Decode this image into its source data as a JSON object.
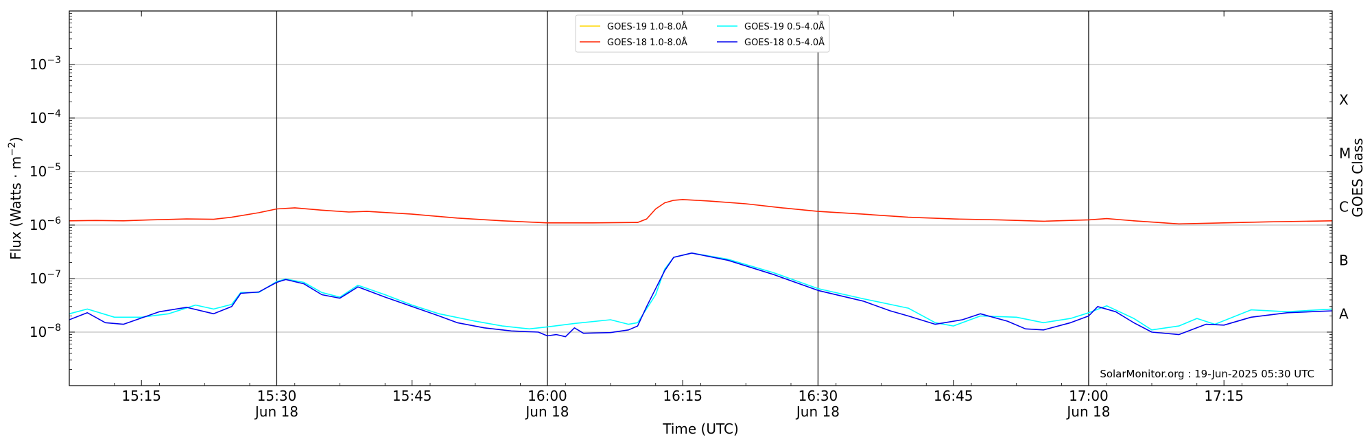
{
  "chart_data": {
    "type": "line",
    "ylabel": "Flux (Watts · m",
    "ylabel_exponent": "−2",
    "ylabel_close": ")",
    "y_right_label": "GOES Class",
    "xlabel": "Time (UTC)",
    "y_scale": "log",
    "ylim": [
      1e-09,
      0.01
    ],
    "xlim": [
      "2025-06-18T15:07:00Z",
      "2025-06-18T17:27:00Z"
    ],
    "grid": "horizontal",
    "legend_position": "top-center",
    "watermark": "SolarMonitor.org : 19-Jun-2025 05:30 UTC",
    "y_ticks": [
      {
        "value": 1e-08,
        "base": "10",
        "exp": "−8"
      },
      {
        "value": 1e-07,
        "base": "10",
        "exp": "−7"
      },
      {
        "value": 1e-06,
        "base": "10",
        "exp": "−6"
      },
      {
        "value": 1e-05,
        "base": "10",
        "exp": "−5"
      },
      {
        "value": 0.0001,
        "base": "10",
        "exp": "−4"
      },
      {
        "value": 0.001,
        "base": "10",
        "exp": "−3"
      }
    ],
    "x_ticks": [
      {
        "time": "2025-06-18T15:15:00Z",
        "label": "15:15",
        "sublabel": ""
      },
      {
        "time": "2025-06-18T15:30:00Z",
        "label": "15:30",
        "sublabel": "Jun 18"
      },
      {
        "time": "2025-06-18T15:45:00Z",
        "label": "15:45",
        "sublabel": ""
      },
      {
        "time": "2025-06-18T16:00:00Z",
        "label": "16:00",
        "sublabel": "Jun 18"
      },
      {
        "time": "2025-06-18T16:15:00Z",
        "label": "16:15",
        "sublabel": ""
      },
      {
        "time": "2025-06-18T16:30:00Z",
        "label": "16:30",
        "sublabel": "Jun 18"
      },
      {
        "time": "2025-06-18T16:45:00Z",
        "label": "16:45",
        "sublabel": ""
      },
      {
        "time": "2025-06-18T17:00:00Z",
        "label": "17:00",
        "sublabel": "Jun 18"
      },
      {
        "time": "2025-06-18T17:15:00Z",
        "label": "17:15",
        "sublabel": ""
      }
    ],
    "vlines": [
      "2025-06-18T15:30:00Z",
      "2025-06-18T16:00:00Z",
      "2025-06-18T16:30:00Z",
      "2025-06-18T17:00:00Z"
    ],
    "goes_classes": [
      {
        "label": "A",
        "value": 2.2e-08
      },
      {
        "label": "B",
        "value": 2.2e-07
      },
      {
        "label": "C",
        "value": 2.2e-06
      },
      {
        "label": "M",
        "value": 2.2e-05
      },
      {
        "label": "X",
        "value": 0.00022
      }
    ],
    "legend": [
      {
        "label": "GOES-19 1.0-8.0Å",
        "color": "#ffd700"
      },
      {
        "label": "GOES-19 0.5-4.0Å",
        "color": "#00ffff"
      },
      {
        "label": "GOES-18 1.0-8.0Å",
        "color": "#ff2200"
      },
      {
        "label": "GOES-18 0.5-4.0Å",
        "color": "#0000ee"
      }
    ],
    "series": [
      {
        "name": "GOES-18 1.0-8.0Å",
        "color": "#ff2200",
        "points": [
          [
            "2025-06-18T15:07:00Z",
            1.2e-06
          ],
          [
            "2025-06-18T15:10:00Z",
            1.22e-06
          ],
          [
            "2025-06-18T15:13:00Z",
            1.2e-06
          ],
          [
            "2025-06-18T15:16:00Z",
            1.25e-06
          ],
          [
            "2025-06-18T15:20:00Z",
            1.3e-06
          ],
          [
            "2025-06-18T15:23:00Z",
            1.28e-06
          ],
          [
            "2025-06-18T15:25:00Z",
            1.4e-06
          ],
          [
            "2025-06-18T15:28:00Z",
            1.7e-06
          ],
          [
            "2025-06-18T15:30:00Z",
            2e-06
          ],
          [
            "2025-06-18T15:32:00Z",
            2.1e-06
          ],
          [
            "2025-06-18T15:35:00Z",
            1.9e-06
          ],
          [
            "2025-06-18T15:38:00Z",
            1.75e-06
          ],
          [
            "2025-06-18T15:40:00Z",
            1.8e-06
          ],
          [
            "2025-06-18T15:45:00Z",
            1.6e-06
          ],
          [
            "2025-06-18T15:50:00Z",
            1.35e-06
          ],
          [
            "2025-06-18T15:55:00Z",
            1.2e-06
          ],
          [
            "2025-06-18T16:00:00Z",
            1.1e-06
          ],
          [
            "2025-06-18T16:05:00Z",
            1.1e-06
          ],
          [
            "2025-06-18T16:10:00Z",
            1.12e-06
          ],
          [
            "2025-06-18T16:11:00Z",
            1.3e-06
          ],
          [
            "2025-06-18T16:12:00Z",
            2e-06
          ],
          [
            "2025-06-18T16:13:00Z",
            2.6e-06
          ],
          [
            "2025-06-18T16:14:00Z",
            2.9e-06
          ],
          [
            "2025-06-18T16:15:00Z",
            3e-06
          ],
          [
            "2025-06-18T16:18:00Z",
            2.8e-06
          ],
          [
            "2025-06-18T16:22:00Z",
            2.5e-06
          ],
          [
            "2025-06-18T16:26:00Z",
            2.1e-06
          ],
          [
            "2025-06-18T16:30:00Z",
            1.8e-06
          ],
          [
            "2025-06-18T16:35:00Z",
            1.6e-06
          ],
          [
            "2025-06-18T16:40:00Z",
            1.4e-06
          ],
          [
            "2025-06-18T16:45:00Z",
            1.3e-06
          ],
          [
            "2025-06-18T16:50:00Z",
            1.25e-06
          ],
          [
            "2025-06-18T16:55:00Z",
            1.18e-06
          ],
          [
            "2025-06-18T17:00:00Z",
            1.25e-06
          ],
          [
            "2025-06-18T17:02:00Z",
            1.32e-06
          ],
          [
            "2025-06-18T17:05:00Z",
            1.2e-06
          ],
          [
            "2025-06-18T17:10:00Z",
            1.05e-06
          ],
          [
            "2025-06-18T17:15:00Z",
            1.1e-06
          ],
          [
            "2025-06-18T17:20:00Z",
            1.15e-06
          ],
          [
            "2025-06-18T17:27:00Z",
            1.2e-06
          ]
        ]
      },
      {
        "name": "GOES-19 0.5-4.0Å",
        "color": "#00ffff",
        "points": [
          [
            "2025-06-18T15:07:00Z",
            2.2e-08
          ],
          [
            "2025-06-18T15:09:00Z",
            2.7e-08
          ],
          [
            "2025-06-18T15:12:00Z",
            1.9e-08
          ],
          [
            "2025-06-18T15:15:00Z",
            1.9e-08
          ],
          [
            "2025-06-18T15:18:00Z",
            2.2e-08
          ],
          [
            "2025-06-18T15:21:00Z",
            3.2e-08
          ],
          [
            "2025-06-18T15:23:00Z",
            2.7e-08
          ],
          [
            "2025-06-18T15:25:00Z",
            3.3e-08
          ],
          [
            "2025-06-18T15:26:00Z",
            5.5e-08
          ],
          [
            "2025-06-18T15:28:00Z",
            5.5e-08
          ],
          [
            "2025-06-18T15:30:00Z",
            8.8e-08
          ],
          [
            "2025-06-18T15:31:00Z",
            9.8e-08
          ],
          [
            "2025-06-18T15:33:00Z",
            8.5e-08
          ],
          [
            "2025-06-18T15:35:00Z",
            5.5e-08
          ],
          [
            "2025-06-18T15:37:00Z",
            4.5e-08
          ],
          [
            "2025-06-18T15:39:00Z",
            7.5e-08
          ],
          [
            "2025-06-18T15:42:00Z",
            5e-08
          ],
          [
            "2025-06-18T15:45:00Z",
            3.2e-08
          ],
          [
            "2025-06-18T15:48:00Z",
            2.2e-08
          ],
          [
            "2025-06-18T15:52:00Z",
            1.6e-08
          ],
          [
            "2025-06-18T15:55:00Z",
            1.3e-08
          ],
          [
            "2025-06-18T15:58:00Z",
            1.15e-08
          ],
          [
            "2025-06-18T16:00:00Z",
            1.25e-08
          ],
          [
            "2025-06-18T16:03:00Z",
            1.45e-08
          ],
          [
            "2025-06-18T16:07:00Z",
            1.7e-08
          ],
          [
            "2025-06-18T16:09:00Z",
            1.4e-08
          ],
          [
            "2025-06-18T16:10:00Z",
            1.5e-08
          ],
          [
            "2025-06-18T16:12:00Z",
            5e-08
          ],
          [
            "2025-06-18T16:13:00Z",
            1.5e-07
          ],
          [
            "2025-06-18T16:14:00Z",
            2.5e-07
          ],
          [
            "2025-06-18T16:16:00Z",
            3e-07
          ],
          [
            "2025-06-18T16:20:00Z",
            2.3e-07
          ],
          [
            "2025-06-18T16:25:00Z",
            1.3e-07
          ],
          [
            "2025-06-18T16:30:00Z",
            6.5e-08
          ],
          [
            "2025-06-18T16:35:00Z",
            4.2e-08
          ],
          [
            "2025-06-18T16:40:00Z",
            2.8e-08
          ],
          [
            "2025-06-18T16:43:00Z",
            1.5e-08
          ],
          [
            "2025-06-18T16:45:00Z",
            1.3e-08
          ],
          [
            "2025-06-18T16:48:00Z",
            2e-08
          ],
          [
            "2025-06-18T16:52:00Z",
            1.9e-08
          ],
          [
            "2025-06-18T16:55:00Z",
            1.5e-08
          ],
          [
            "2025-06-18T16:58:00Z",
            1.8e-08
          ],
          [
            "2025-06-18T17:00:00Z",
            2.3e-08
          ],
          [
            "2025-06-18T17:02:00Z",
            3.1e-08
          ],
          [
            "2025-06-18T17:05:00Z",
            1.8e-08
          ],
          [
            "2025-06-18T17:07:00Z",
            1.1e-08
          ],
          [
            "2025-06-18T17:10:00Z",
            1.3e-08
          ],
          [
            "2025-06-18T17:12:00Z",
            1.8e-08
          ],
          [
            "2025-06-18T17:14:00Z",
            1.4e-08
          ],
          [
            "2025-06-18T17:18:00Z",
            2.6e-08
          ],
          [
            "2025-06-18T17:22:00Z",
            2.4e-08
          ],
          [
            "2025-06-18T17:27:00Z",
            2.7e-08
          ]
        ]
      },
      {
        "name": "GOES-18 0.5-4.0Å",
        "color": "#0000ee",
        "points": [
          [
            "2025-06-18T15:07:00Z",
            1.7e-08
          ],
          [
            "2025-06-18T15:09:00Z",
            2.3e-08
          ],
          [
            "2025-06-18T15:11:00Z",
            1.5e-08
          ],
          [
            "2025-06-18T15:13:00Z",
            1.4e-08
          ],
          [
            "2025-06-18T15:17:00Z",
            2.4e-08
          ],
          [
            "2025-06-18T15:20:00Z",
            2.9e-08
          ],
          [
            "2025-06-18T15:23:00Z",
            2.2e-08
          ],
          [
            "2025-06-18T15:25:00Z",
            3e-08
          ],
          [
            "2025-06-18T15:26:00Z",
            5.3e-08
          ],
          [
            "2025-06-18T15:28:00Z",
            5.6e-08
          ],
          [
            "2025-06-18T15:30:00Z",
            8.5e-08
          ],
          [
            "2025-06-18T15:31:00Z",
            9.6e-08
          ],
          [
            "2025-06-18T15:33:00Z",
            8e-08
          ],
          [
            "2025-06-18T15:35:00Z",
            5e-08
          ],
          [
            "2025-06-18T15:37:00Z",
            4.3e-08
          ],
          [
            "2025-06-18T15:39:00Z",
            7e-08
          ],
          [
            "2025-06-18T15:42:00Z",
            4.5e-08
          ],
          [
            "2025-06-18T15:45:00Z",
            3e-08
          ],
          [
            "2025-06-18T15:48:00Z",
            2e-08
          ],
          [
            "2025-06-18T15:50:00Z",
            1.5e-08
          ],
          [
            "2025-06-18T15:53:00Z",
            1.2e-08
          ],
          [
            "2025-06-18T15:56:00Z",
            1.05e-08
          ],
          [
            "2025-06-18T15:59:00Z",
            1e-08
          ],
          [
            "2025-06-18T16:00:00Z",
            8.5e-09
          ],
          [
            "2025-06-18T16:01:00Z",
            9e-09
          ],
          [
            "2025-06-18T16:02:00Z",
            8.2e-09
          ],
          [
            "2025-06-18T16:03:00Z",
            1.2e-08
          ],
          [
            "2025-06-18T16:04:00Z",
            9.5e-09
          ],
          [
            "2025-06-18T16:07:00Z",
            9.8e-09
          ],
          [
            "2025-06-18T16:09:00Z",
            1.1e-08
          ],
          [
            "2025-06-18T16:10:00Z",
            1.3e-08
          ],
          [
            "2025-06-18T16:11:00Z",
            3e-08
          ],
          [
            "2025-06-18T16:13:00Z",
            1.4e-07
          ],
          [
            "2025-06-18T16:14:00Z",
            2.5e-07
          ],
          [
            "2025-06-18T16:16:00Z",
            3e-07
          ],
          [
            "2025-06-18T16:20:00Z",
            2.2e-07
          ],
          [
            "2025-06-18T16:25:00Z",
            1.2e-07
          ],
          [
            "2025-06-18T16:30:00Z",
            6e-08
          ],
          [
            "2025-06-18T16:35:00Z",
            3.8e-08
          ],
          [
            "2025-06-18T16:38:00Z",
            2.5e-08
          ],
          [
            "2025-06-18T16:40:00Z",
            2e-08
          ],
          [
            "2025-06-18T16:43:00Z",
            1.4e-08
          ],
          [
            "2025-06-18T16:46:00Z",
            1.7e-08
          ],
          [
            "2025-06-18T16:48:00Z",
            2.2e-08
          ],
          [
            "2025-06-18T16:51:00Z",
            1.6e-08
          ],
          [
            "2025-06-18T16:53:00Z",
            1.15e-08
          ],
          [
            "2025-06-18T16:55:00Z",
            1.1e-08
          ],
          [
            "2025-06-18T16:58:00Z",
            1.5e-08
          ],
          [
            "2025-06-18T17:00:00Z",
            2e-08
          ],
          [
            "2025-06-18T17:01:00Z",
            3e-08
          ],
          [
            "2025-06-18T17:03:00Z",
            2.4e-08
          ],
          [
            "2025-06-18T17:05:00Z",
            1.5e-08
          ],
          [
            "2025-06-18T17:07:00Z",
            1e-08
          ],
          [
            "2025-06-18T17:10:00Z",
            9e-09
          ],
          [
            "2025-06-18T17:13:00Z",
            1.4e-08
          ],
          [
            "2025-06-18T17:15:00Z",
            1.35e-08
          ],
          [
            "2025-06-18T17:18:00Z",
            1.9e-08
          ],
          [
            "2025-06-18T17:22:00Z",
            2.3e-08
          ],
          [
            "2025-06-18T17:27:00Z",
            2.5e-08
          ]
        ]
      }
    ]
  }
}
